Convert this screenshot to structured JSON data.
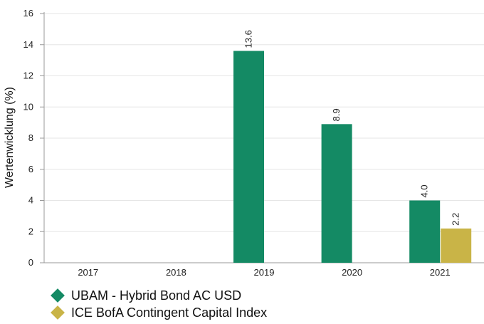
{
  "chart_data": {
    "type": "bar",
    "categories": [
      "2017",
      "2018",
      "2019",
      "2020",
      "2021"
    ],
    "series": [
      {
        "name": "UBAM - Hybrid Bond AC USD",
        "color": "#148a64",
        "values": [
          null,
          null,
          13.6,
          8.9,
          4.0
        ],
        "labels": [
          "",
          "",
          "13.6",
          "8.9",
          "4.0"
        ]
      },
      {
        "name": "ICE BofA Contingent Capital Index",
        "color": "#c9b447",
        "values": [
          null,
          null,
          null,
          null,
          2.2
        ],
        "labels": [
          "",
          "",
          "",
          "",
          "2.2"
        ]
      }
    ],
    "ylabel": "Wertenwicklung (%)",
    "ylim": [
      0,
      16
    ],
    "yticks": [
      0,
      2,
      4,
      6,
      8,
      10,
      12,
      14,
      16
    ],
    "grid": true,
    "legend_position": "bottom-left"
  }
}
